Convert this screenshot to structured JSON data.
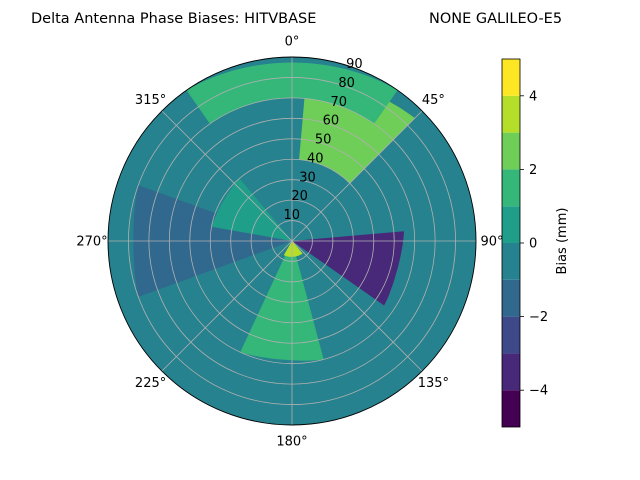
{
  "chart_data": {
    "type": "polar-contour",
    "title": "Delta Antenna Phase Biases: HITVBASE",
    "title_right": "NONE GALILEO-E5",
    "angular_direction": "clockwise",
    "zero_location": "top",
    "angle_ticks": [
      "0°",
      "45°",
      "90°",
      "135°",
      "180°",
      "225°",
      "270°",
      "315°"
    ],
    "radial_ticks": [
      "10",
      "20",
      "30",
      "40",
      "50",
      "60",
      "70",
      "80",
      "90"
    ],
    "radial_range": [
      0,
      90
    ],
    "grid": true,
    "colorbar": {
      "label": "Bias (mm)",
      "range": [
        -5,
        5
      ],
      "ticks": [
        "−4",
        "−2",
        "0",
        "2",
        "4"
      ],
      "levels": [
        -5,
        -4,
        -3,
        -2,
        -1,
        0,
        1,
        2,
        3,
        4,
        5
      ],
      "colors": [
        "#440154",
        "#482878",
        "#3e4989",
        "#31688e",
        "#26828e",
        "#1f9e89",
        "#35b779",
        "#6ece58",
        "#b5de2b",
        "#fde725"
      ]
    },
    "regions": [
      {
        "description": "background",
        "min": -1,
        "max": 0
      },
      {
        "az": 25,
        "el_from": 40,
        "el_to": 85,
        "min": 2,
        "max": 3
      },
      {
        "az": 0,
        "el_from": 70,
        "el_to": 90,
        "min": 1,
        "max": 2
      },
      {
        "az": 105,
        "el_from": 0,
        "el_to": 55,
        "min": -4,
        "max": -3
      },
      {
        "az": 185,
        "el_from": 0,
        "el_to": 60,
        "min": 1,
        "max": 3
      },
      {
        "az": 175,
        "el_from": 0,
        "el_to": 8,
        "min": 3,
        "max": 4
      },
      {
        "az": 270,
        "el_from": 0,
        "el_to": 80,
        "min": -2,
        "max": -1
      },
      {
        "az": 300,
        "el_from": 0,
        "el_to": 40,
        "min": 0,
        "max": 1
      }
    ]
  }
}
